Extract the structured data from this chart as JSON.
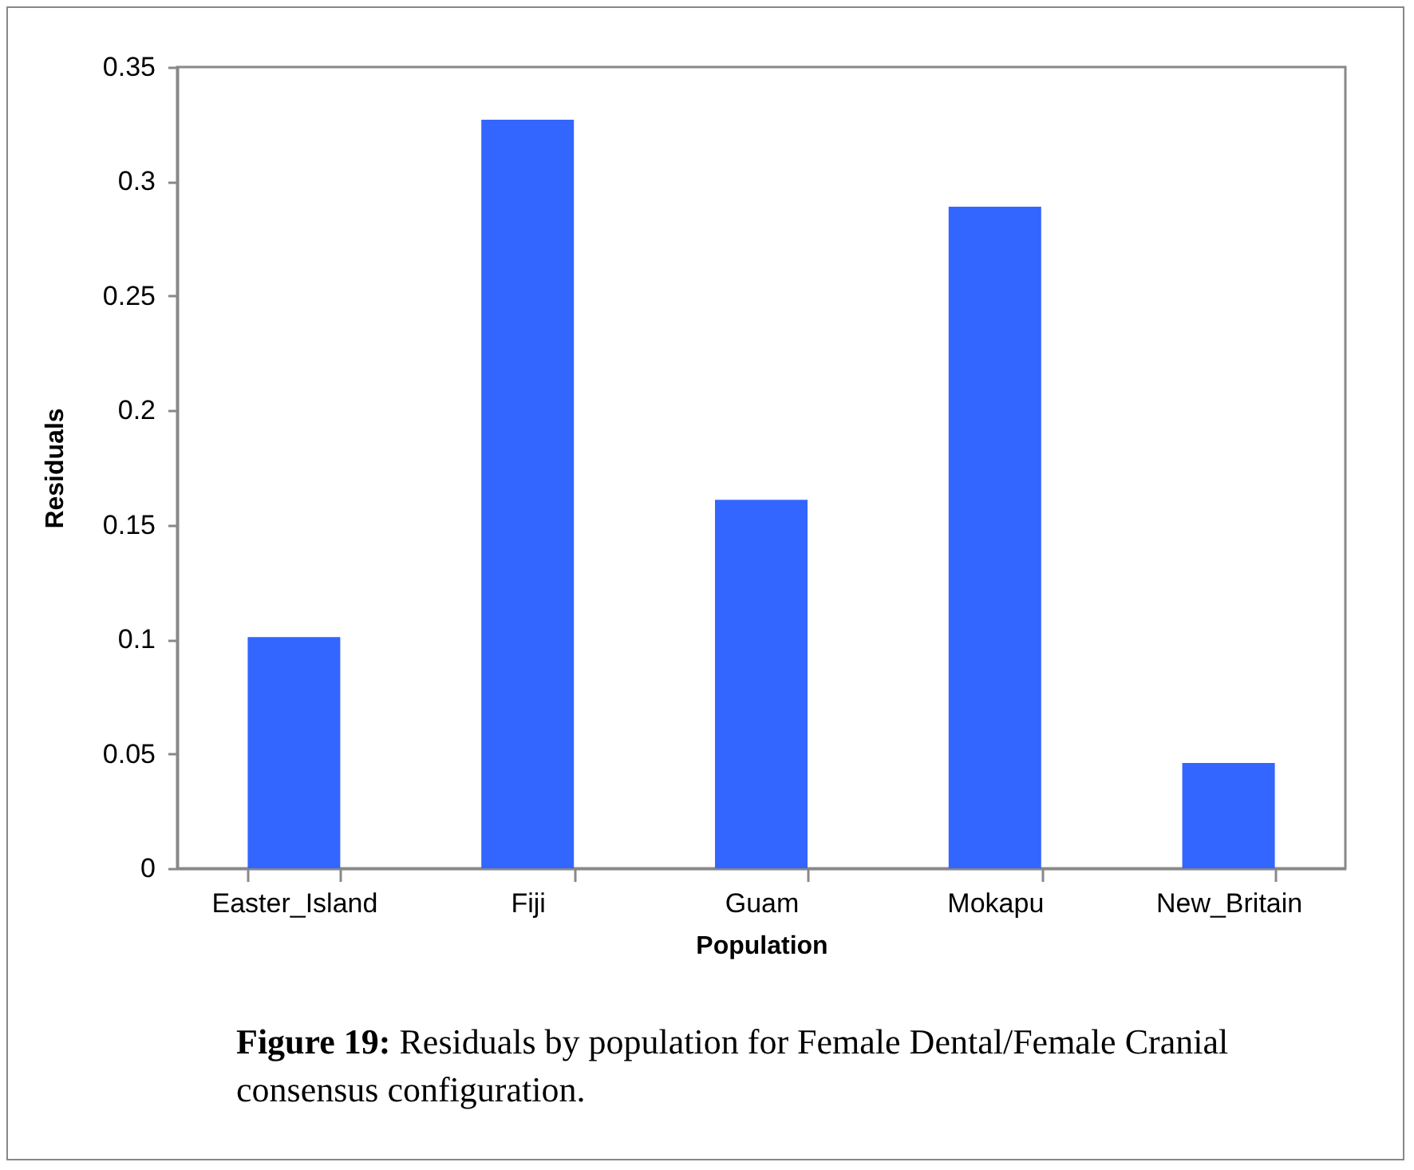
{
  "chart_data": {
    "type": "bar",
    "xlabel": "Population",
    "ylabel": "Residuals",
    "categories": [
      "Easter_Island",
      "Fiji",
      "Guam",
      "Mokapu",
      "New_Britain"
    ],
    "values": [
      0.101,
      0.327,
      0.161,
      0.289,
      0.046
    ],
    "color": "#3366ff",
    "ylim": [
      0,
      0.35
    ],
    "yticks": [
      0,
      0.05,
      0.1,
      0.15,
      0.2,
      0.25,
      0.3,
      0.35
    ],
    "grid": false,
    "annotations": [
      "Figure 19: Residuals by population for Female Dental/Female Cranial consensus configuration."
    ]
  }
}
